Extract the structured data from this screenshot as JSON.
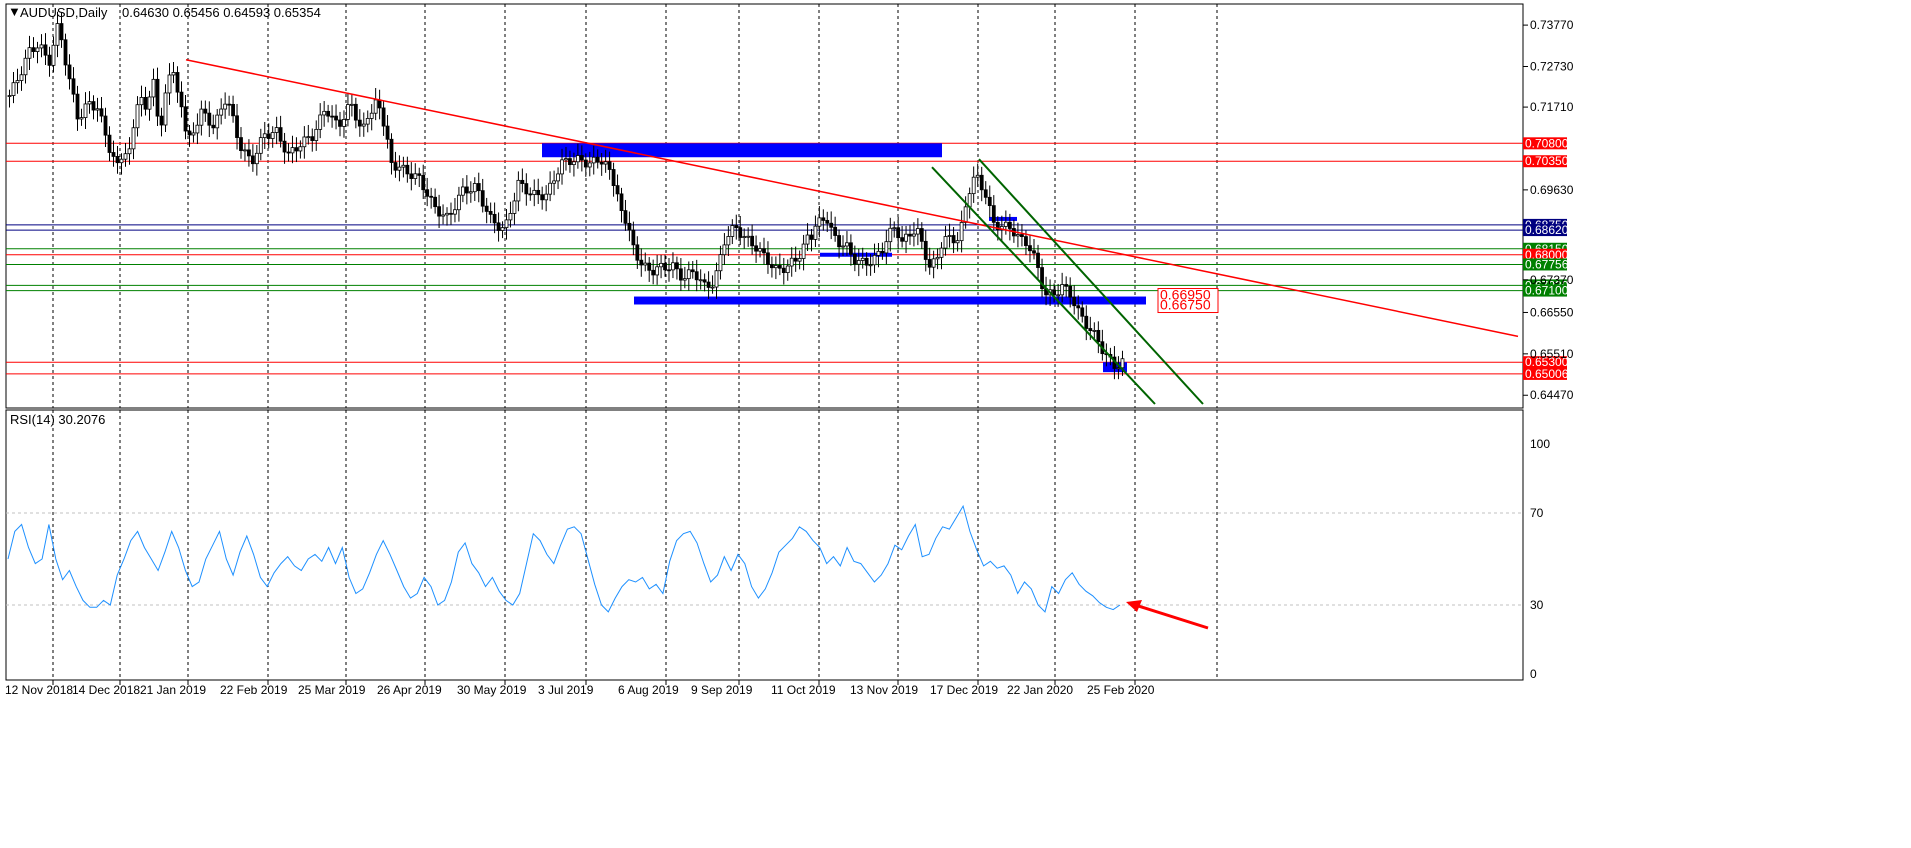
{
  "main_panel": {
    "symbol": "AUDUSD,Daily",
    "ohlc": "0.64630 0.65456 0.64593 0.65354",
    "price_ticks": [
      "0.73770",
      "0.72730",
      "0.71710",
      "0.69630",
      "0.67370",
      "0.66550",
      "0.65510",
      "0.64470"
    ],
    "level_tags": [
      {
        "text": "0.70800",
        "color": "#ff0000"
      },
      {
        "text": "0.70350",
        "color": "#ff0000"
      },
      {
        "text": "0.68750",
        "color": "#000080"
      },
      {
        "text": "0.68620",
        "color": "#000080"
      },
      {
        "text": "0.68150",
        "color": "#008000"
      },
      {
        "text": "0.68000",
        "color": "#ff0000"
      },
      {
        "text": "0.67756",
        "color": "#008000"
      },
      {
        "text": "0.67230",
        "color": "#008000"
      },
      {
        "text": "0.67100",
        "color": "#008000"
      },
      {
        "text": "0.65300",
        "color": "#ff0000"
      },
      {
        "text": "0.65006",
        "color": "#ff0000"
      }
    ],
    "box_labels": [
      "0.66950",
      "0.66750"
    ]
  },
  "rsi_panel": {
    "label": "RSI(14) 30.2076",
    "ticks": [
      "100",
      "70",
      "30",
      "0"
    ]
  },
  "time_axis": [
    "12 Nov 2018",
    "14 Dec 2018",
    "21 Jan 2019",
    "22 Feb 2019",
    "25 Mar 2019",
    "26 Apr 2019",
    "30 May 2019",
    "3 Jul 2019",
    "6 Aug 2019",
    "9 Sep 2019",
    "11 Oct 2019",
    "13 Nov 2019",
    "17 Dec 2019",
    "22 Jan 2020",
    "25 Feb 2020"
  ],
  "colors": {
    "bull": "#000000",
    "level_red": "#ff0000",
    "level_navy": "#000080",
    "level_green": "#008000",
    "zone_blue": "#0000ff",
    "rsi": "#1e90ff",
    "channel": "#006400"
  },
  "chart_data": {
    "type": "candlestick",
    "title": "AUDUSD,Daily",
    "ylim": [
      0.6425,
      0.7425
    ],
    "x": [
      "12 Nov 2018",
      "14 Dec 2018",
      "21 Jan 2019",
      "22 Feb 2019",
      "25 Mar 2019",
      "26 Apr 2019",
      "30 May 2019",
      "3 Jul 2019",
      "6 Aug 2019",
      "9 Sep 2019",
      "11 Oct 2019",
      "13 Nov 2019",
      "17 Dec 2019",
      "22 Jan 2020",
      "25 Feb 2020"
    ],
    "close_path": [
      [
        0.72,
        0.725,
        0.731,
        0.733,
        0.728,
        0.738,
        0.725,
        0.714,
        0.718,
        0.717,
        0.708,
        0.702
      ],
      [
        0.703,
        0.706,
        0.713,
        0.72,
        0.717,
        0.723,
        0.711,
        0.721,
        0.728,
        0.719,
        0.711
      ],
      [
        0.709,
        0.716,
        0.712,
        0.72,
        0.708,
        0.703,
        0.71,
        0.711,
        0.705,
        0.708,
        0.71,
        0.717,
        0.712,
        0.718,
        0.711,
        0.719,
        0.71
      ],
      [
        0.703,
        0.701,
        0.699,
        0.692,
        0.689,
        0.696,
        0.697,
        0.689,
        0.686,
        0.698,
        0.695,
        0.695,
        0.703,
        0.704,
        0.703,
        0.704,
        0.696
      ],
      [
        0.692,
        0.683,
        0.677,
        0.676,
        0.677,
        0.677,
        0.674,
        0.676,
        0.672,
        0.673,
        0.684,
        0.687,
        0.684,
        0.682,
        0.679,
        0.676,
        0.677,
        0.679,
        0.684
      ],
      [
        0.685,
        0.688,
        0.69,
        0.685,
        0.683,
        0.682,
        0.679,
        0.678,
        0.678,
        0.679,
        0.681,
        0.685,
        0.687,
        0.683,
        0.685,
        0.687,
        0.681,
        0.677,
        0.679
      ],
      [
        0.682,
        0.685,
        0.683,
        0.695,
        0.7,
        0.696,
        0.688,
        0.687,
        0.687,
        0.684,
        0.683,
        0.678,
        0.67,
        0.67,
        0.672,
        0.67,
        0.665,
        0.662,
        0.659,
        0.655,
        0.652,
        0.653
      ]
    ],
    "levels": [
      0.708,
      0.7035,
      0.6875,
      0.6862,
      0.6815,
      0.68,
      0.67756,
      0.6723,
      0.671,
      0.653,
      0.65006
    ],
    "zones": [
      {
        "top": 0.708,
        "bottom": 0.7045,
        "from": "early Jun 2019",
        "to": "mid Dec 2019"
      },
      {
        "top": 0.6695,
        "bottom": 0.6675,
        "from": "early Aug 2019",
        "to": "late Feb 2020"
      }
    ],
    "trendline": {
      "from": [
        0.729,
        "late Jan 2019"
      ],
      "to": [
        0.6595,
        "end of chart"
      ]
    },
    "rsi": {
      "name": "RSI(14)",
      "ylim": [
        0,
        100
      ],
      "last": 30.2076,
      "values": [
        50,
        62,
        65,
        55,
        48,
        50,
        65,
        50,
        41,
        45,
        38,
        32,
        29,
        29,
        32,
        30,
        43,
        50,
        58,
        62,
        55,
        50,
        45,
        53,
        62,
        55,
        45,
        38,
        40,
        50,
        56,
        62,
        50,
        43,
        53,
        60,
        52,
        42,
        38,
        44,
        48,
        51,
        47,
        45,
        50,
        52,
        49,
        55,
        48,
        55,
        42,
        35,
        37,
        44,
        52,
        58,
        52,
        45,
        38,
        33,
        35,
        42,
        38,
        30,
        32,
        40,
        53,
        57,
        48,
        44,
        38,
        42,
        36,
        32,
        30,
        35,
        48,
        61,
        58,
        52,
        48,
        56,
        63,
        64,
        61,
        50,
        39,
        30,
        27,
        33,
        38,
        41,
        40,
        42,
        37,
        39,
        35,
        49,
        58,
        61,
        62,
        57,
        48,
        40,
        43,
        51,
        45,
        52,
        48,
        38,
        33,
        37,
        44,
        53,
        56,
        59,
        64,
        62,
        58,
        55,
        48,
        51,
        47,
        55,
        49,
        48,
        44,
        40,
        43,
        48,
        56,
        54,
        60,
        65,
        51,
        52,
        59,
        64,
        63,
        68,
        73,
        62,
        54,
        47,
        49,
        46,
        47,
        43,
        35,
        40,
        37,
        30,
        27,
        38,
        35,
        41,
        44,
        39,
        36,
        34,
        31,
        29,
        28,
        30
      ]
    }
  }
}
